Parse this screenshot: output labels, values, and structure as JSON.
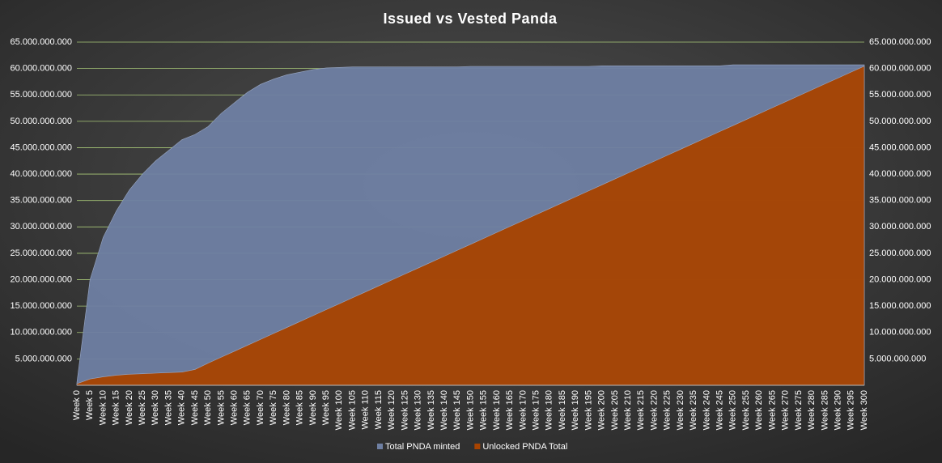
{
  "chart_data": {
    "type": "area",
    "title": "Issued vs Vested Panda",
    "categories": [
      "Week 0",
      "Week 5",
      "Week 10",
      "Week 15",
      "Week 20",
      "Week 25",
      "Week 30",
      "Week 35",
      "Week 40",
      "Week 45",
      "Week 50",
      "Week 55",
      "Week 60",
      "Week 65",
      "Week 70",
      "Week 75",
      "Week 80",
      "Week 85",
      "Week 90",
      "Week 95",
      "Week 100",
      "Week 105",
      "Week 110",
      "Week 115",
      "Week 120",
      "Week 125",
      "Week 130",
      "Week 135",
      "Week 140",
      "Week 145",
      "Week 150",
      "Week 155",
      "Week 160",
      "Week 165",
      "Week 170",
      "Week 175",
      "Week 180",
      "Week 185",
      "Week 190",
      "Week 195",
      "Week 200",
      "Week 205",
      "Week 210",
      "Week 215",
      "Week 220",
      "Week 225",
      "Week 230",
      "Week 235",
      "Week 240",
      "Week 245",
      "Week 250",
      "Week 255",
      "Week 260",
      "Week 265",
      "Week 270",
      "Week 275",
      "Week 280",
      "Week 285",
      "Week 290",
      "Week 295",
      "Week 300"
    ],
    "series": [
      {
        "name": "Total PNDA minted",
        "color": "#6f80a3",
        "values": [
          500000000.0,
          20000000000.0,
          28000000000.0,
          33000000000.0,
          37000000000.0,
          40000000000.0,
          42500000000.0,
          44500000000.0,
          46500000000.0,
          47500000000.0,
          49000000000.0,
          51500000000.0,
          53500000000.0,
          55500000000.0,
          57000000000.0,
          58000000000.0,
          58800000000.0,
          59300000000.0,
          59800000000.0,
          60100000000.0,
          60200000000.0,
          60300000000.0,
          60300000000.0,
          60300000000.0,
          60300000000.0,
          60300000000.0,
          60300000000.0,
          60300000000.0,
          60300000000.0,
          60300000000.0,
          60400000000.0,
          60400000000.0,
          60400000000.0,
          60400000000.0,
          60400000000.0,
          60400000000.0,
          60400000000.0,
          60400000000.0,
          60400000000.0,
          60400000000.0,
          60500000000.0,
          60500000000.0,
          60500000000.0,
          60500000000.0,
          60500000000.0,
          60500000000.0,
          60500000000.0,
          60500000000.0,
          60500000000.0,
          60500000000.0,
          60700000000.0,
          60700000000.0,
          60700000000.0,
          60700000000.0,
          60700000000.0,
          60700000000.0,
          60700000000.0,
          60700000000.0,
          60700000000.0,
          60700000000.0,
          60700000000.0
        ]
      },
      {
        "name": "Unlocked PNDA Total",
        "color": "#a84300",
        "values": [
          300000000.0,
          1200000000.0,
          1600000000.0,
          1900000000.0,
          2100000000.0,
          2200000000.0,
          2300000000.0,
          2400000000.0,
          2500000000.0,
          3000000000.0,
          4200000000.0,
          5330000000.0,
          6450000000.0,
          7580000000.0,
          8700000000.0,
          9830000000.0,
          10950000000.0,
          12080000000.0,
          13200000000.0,
          14330000000.0,
          15450000000.0,
          16580000000.0,
          17700000000.0,
          18830000000.0,
          19950000000.0,
          21080000000.0,
          22200000000.0,
          23330000000.0,
          24450000000.0,
          25580000000.0,
          26700000000.0,
          27830000000.0,
          28950000000.0,
          30080000000.0,
          31200000000.0,
          32330000000.0,
          33450000000.0,
          34580000000.0,
          35700000000.0,
          36830000000.0,
          37950000000.0,
          39080000000.0,
          40200000000.0,
          41330000000.0,
          42450000000.0,
          43580000000.0,
          44700000000.0,
          45830000000.0,
          46950000000.0,
          48080000000.0,
          49200000000.0,
          50330000000.0,
          51450000000.0,
          52580000000.0,
          53700000000.0,
          54830000000.0,
          55950000000.0,
          57080000000.0,
          58200000000.0,
          59330000000.0,
          60450000000.0
        ]
      }
    ],
    "ylim": [
      0,
      65000000000
    ],
    "yticks": [
      {
        "value": 5000000000,
        "label": "5.000.000.000"
      },
      {
        "value": 10000000000,
        "label": "10.000.000.000"
      },
      {
        "value": 15000000000,
        "label": "15.000.000.000"
      },
      {
        "value": 20000000000,
        "label": "20.000.000.000"
      },
      {
        "value": 25000000000,
        "label": "25.000.000.000"
      },
      {
        "value": 30000000000,
        "label": "30.000.000.000"
      },
      {
        "value": 35000000000,
        "label": "35.000.000.000"
      },
      {
        "value": 40000000000,
        "label": "40.000.000.000"
      },
      {
        "value": 45000000000,
        "label": "45.000.000.000"
      },
      {
        "value": 50000000000,
        "label": "50.000.000.000"
      },
      {
        "value": 55000000000,
        "label": "55.000.000.000"
      },
      {
        "value": 60000000000,
        "label": "60.000.000.000"
      },
      {
        "value": 65000000000,
        "label": "65.000.000.000"
      }
    ],
    "y2lim": [
      0,
      65000000000
    ],
    "y2ticks": [
      {
        "value": 5000000000,
        "label": "5.000.000.000"
      },
      {
        "value": 10000000000,
        "label": "10.000.000.000"
      },
      {
        "value": 15000000000,
        "label": "15.000.000.000"
      },
      {
        "value": 20000000000,
        "label": "20.000.000.000"
      },
      {
        "value": 25000000000,
        "label": "25.000.000.000"
      },
      {
        "value": 30000000000,
        "label": "30.000.000.000"
      },
      {
        "value": 35000000000,
        "label": "35.000.000.000"
      },
      {
        "value": 40000000000,
        "label": "40.000.000.000"
      },
      {
        "value": 45000000000,
        "label": "45.000.000.000"
      },
      {
        "value": 50000000000,
        "label": "50.000.000.000"
      },
      {
        "value": 55000000000,
        "label": "55.000.000.000"
      },
      {
        "value": 60000000000,
        "label": "60.000.000.000"
      },
      {
        "value": 65000000000,
        "label": "65.000.000.000"
      }
    ],
    "grid": true,
    "legend": "bottom"
  }
}
